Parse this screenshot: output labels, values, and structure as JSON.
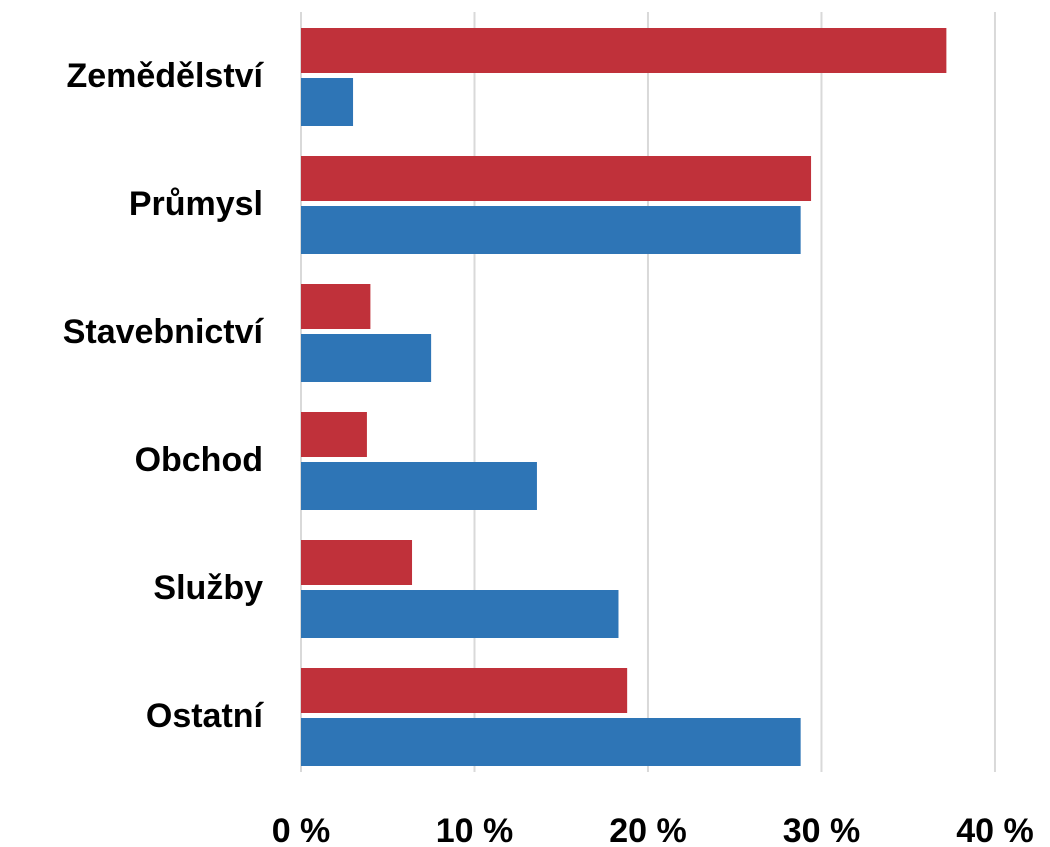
{
  "chart_data": {
    "type": "bar",
    "orientation": "horizontal",
    "categories": [
      "Zemědělství",
      "Průmysl",
      "Stavebnictví",
      "Obchod",
      "Služby",
      "Ostatní"
    ],
    "series": [
      {
        "color": "#c0313a",
        "values": [
          37.2,
          29.4,
          4.0,
          3.8,
          6.4,
          18.8
        ]
      },
      {
        "color": "#2e75b6",
        "values": [
          3.0,
          28.8,
          7.5,
          13.6,
          18.3,
          28.8
        ]
      }
    ],
    "xlim": [
      0,
      43
    ],
    "xticks": [
      {
        "value": 0,
        "label": "0 %"
      },
      {
        "value": 10,
        "label": "10 %"
      },
      {
        "value": 20,
        "label": "20 %"
      },
      {
        "value": 30,
        "label": "30 %"
      },
      {
        "value": 40,
        "label": "40 %"
      }
    ],
    "grid": true
  }
}
